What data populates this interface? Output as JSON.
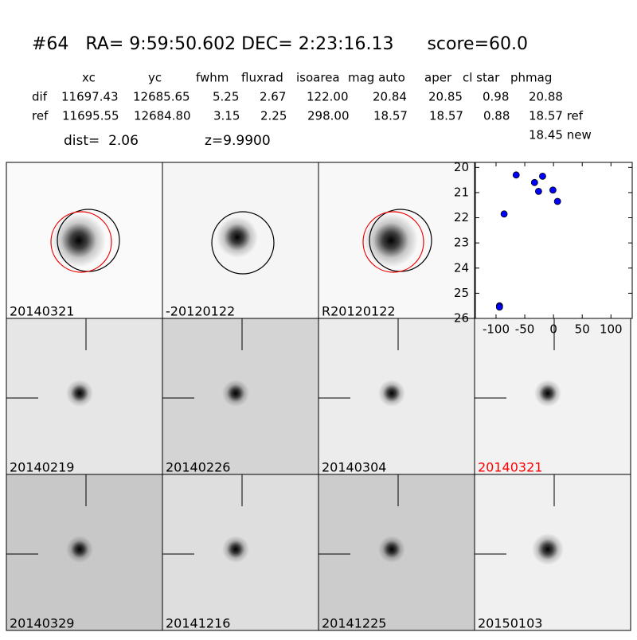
{
  "header": {
    "title": "#64   RA= 9:59:50.602 DEC= 2:23:16.13      score=60.0"
  },
  "table": {
    "columns": [
      "xc",
      "yc",
      "fwhm",
      "fluxrad",
      "isoarea",
      "mag auto",
      "aper",
      "cl star",
      "phmag"
    ],
    "rows": [
      [
        "dif",
        "11697.43",
        "12685.65",
        "5.25",
        "2.67",
        "122.00",
        "20.84",
        "20.85",
        "0.98",
        "20.88"
      ],
      [
        "ref",
        "11695.55",
        "12684.80",
        "3.15",
        "2.25",
        "298.00",
        "18.57",
        "18.57",
        "0.88",
        "18.57 ref"
      ]
    ],
    "extra": "18.45 new"
  },
  "dist": "dist=  2.06",
  "z": "z=9.9900",
  "panels": [
    {
      "label": "20140321",
      "color": "#000000"
    },
    {
      "label": "-20120122",
      "color": "#000000"
    },
    {
      "label": "R20120122",
      "color": "#000000"
    },
    {
      "label": "20140219",
      "color": "#000000"
    },
    {
      "label": "20140226",
      "color": "#000000"
    },
    {
      "label": "20140304",
      "color": "#000000"
    },
    {
      "label": "20140321",
      "color": "#ff0000"
    },
    {
      "label": "20140329",
      "color": "#000000"
    },
    {
      "label": "20141216",
      "color": "#000000"
    },
    {
      "label": "20141225",
      "color": "#000000"
    },
    {
      "label": "20150103",
      "color": "#000000"
    }
  ],
  "chart_data": {
    "type": "scatter",
    "x": [
      -65,
      -19,
      -33,
      -26,
      -1,
      7,
      -86,
      -94,
      -94
    ],
    "values": [
      20.3,
      20.35,
      20.6,
      20.95,
      20.9,
      21.35,
      21.85,
      25.5,
      25.55
    ],
    "color": "#0000ff",
    "xlim": [
      -136,
      137
    ],
    "ylim": [
      26,
      19.8
    ],
    "xticks": [
      -100,
      -50,
      0,
      50,
      100
    ],
    "yticks": [
      20,
      21,
      22,
      23,
      24,
      25,
      26
    ]
  }
}
